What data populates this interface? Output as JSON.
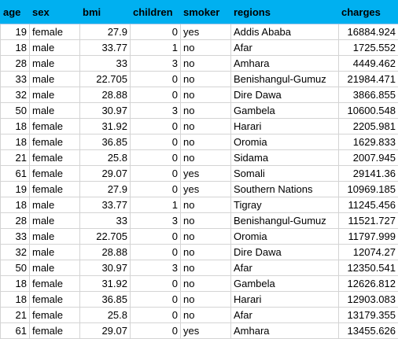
{
  "headers": {
    "age": "age",
    "sex": "sex",
    "bmi": "bmi",
    "children": "children",
    "smoker": "smoker",
    "regions": "regions",
    "charges": "charges"
  },
  "rows": [
    {
      "age": "19",
      "sex": "female",
      "bmi": "27.9",
      "children": "0",
      "smoker": "yes",
      "regions": "Addis Ababa",
      "charges": "16884.924"
    },
    {
      "age": "18",
      "sex": "male",
      "bmi": "33.77",
      "children": "1",
      "smoker": "no",
      "regions": "Afar",
      "charges": "1725.552"
    },
    {
      "age": "28",
      "sex": "male",
      "bmi": "33",
      "children": "3",
      "smoker": "no",
      "regions": "Amhara",
      "charges": "4449.462"
    },
    {
      "age": "33",
      "sex": "male",
      "bmi": "22.705",
      "children": "0",
      "smoker": "no",
      "regions": "Benishangul-Gumuz",
      "charges": "21984.471"
    },
    {
      "age": "32",
      "sex": "male",
      "bmi": "28.88",
      "children": "0",
      "smoker": "no",
      "regions": "Dire Dawa",
      "charges": "3866.855"
    },
    {
      "age": "50",
      "sex": "male",
      "bmi": "30.97",
      "children": "3",
      "smoker": "no",
      "regions": "Gambela",
      "charges": "10600.548"
    },
    {
      "age": "18",
      "sex": "female",
      "bmi": "31.92",
      "children": "0",
      "smoker": "no",
      "regions": "Harari",
      "charges": "2205.981"
    },
    {
      "age": "18",
      "sex": "female",
      "bmi": "36.85",
      "children": "0",
      "smoker": "no",
      "regions": "Oromia",
      "charges": "1629.833"
    },
    {
      "age": "21",
      "sex": "female",
      "bmi": "25.8",
      "children": "0",
      "smoker": "no",
      "regions": "Sidama",
      "charges": "2007.945"
    },
    {
      "age": "61",
      "sex": "female",
      "bmi": "29.07",
      "children": "0",
      "smoker": "yes",
      "regions": "Somali",
      "charges": "29141.36"
    },
    {
      "age": "19",
      "sex": "female",
      "bmi": "27.9",
      "children": "0",
      "smoker": "yes",
      "regions": "Southern Nations",
      "charges": "10969.185"
    },
    {
      "age": "18",
      "sex": "male",
      "bmi": "33.77",
      "children": "1",
      "smoker": "no",
      "regions": "Tigray",
      "charges": "11245.456"
    },
    {
      "age": "28",
      "sex": "male",
      "bmi": "33",
      "children": "3",
      "smoker": "no",
      "regions": "Benishangul-Gumuz",
      "charges": "11521.727"
    },
    {
      "age": "33",
      "sex": "male",
      "bmi": "22.705",
      "children": "0",
      "smoker": "no",
      "regions": "Oromia",
      "charges": "11797.999"
    },
    {
      "age": "32",
      "sex": "male",
      "bmi": "28.88",
      "children": "0",
      "smoker": "no",
      "regions": "Dire Dawa",
      "charges": "12074.27"
    },
    {
      "age": "50",
      "sex": "male",
      "bmi": "30.97",
      "children": "3",
      "smoker": "no",
      "regions": "Afar",
      "charges": "12350.541"
    },
    {
      "age": "18",
      "sex": "female",
      "bmi": "31.92",
      "children": "0",
      "smoker": "no",
      "regions": "Gambela",
      "charges": "12626.812"
    },
    {
      "age": "18",
      "sex": "female",
      "bmi": "36.85",
      "children": "0",
      "smoker": "no",
      "regions": "Harari",
      "charges": "12903.083"
    },
    {
      "age": "21",
      "sex": "female",
      "bmi": "25.8",
      "children": "0",
      "smoker": "no",
      "regions": "Afar",
      "charges": "13179.355"
    },
    {
      "age": "61",
      "sex": "female",
      "bmi": "29.07",
      "children": "0",
      "smoker": "yes",
      "regions": "Amhara",
      "charges": "13455.626"
    }
  ],
  "colors": {
    "header_fill": "#00b0f0",
    "gridline": "#d4d4d4"
  }
}
